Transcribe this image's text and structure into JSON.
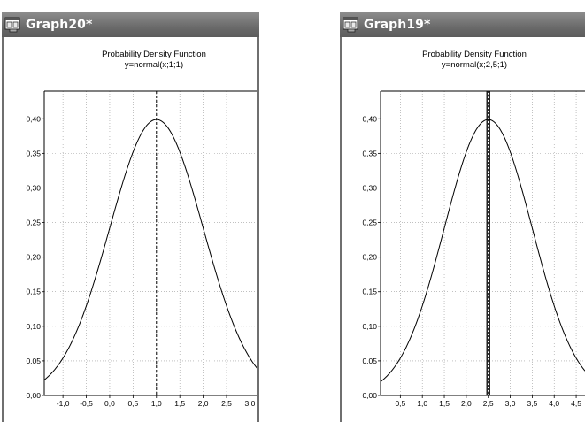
{
  "windows": [
    {
      "title": "Graph20*",
      "icon": "graph-window-icon",
      "chart_data": {
        "type": "line",
        "title": "Probability Density Function",
        "subtitle": "y=normal(x;1;1)",
        "function": "normal",
        "mean": 1,
        "sd": 1,
        "xlim": [
          -1.4,
          3.2
        ],
        "ylim": [
          0,
          0.44
        ],
        "x_ticks": [
          -1.0,
          -0.5,
          0.0,
          0.5,
          1.0,
          1.5,
          2.0,
          2.5,
          3.0
        ],
        "x_tick_labels": [
          "-1,0",
          "-0,5",
          "0,0",
          "0,5",
          "1,0",
          "1,5",
          "2,0",
          "2,5",
          "3,0"
        ],
        "y_ticks": [
          0.0,
          0.05,
          0.1,
          0.15,
          0.2,
          0.25,
          0.3,
          0.35,
          0.4
        ],
        "y_tick_labels": [
          "0,00",
          "0,05",
          "0,10",
          "0,15",
          "0,20",
          "0,25",
          "0,30",
          "0,35",
          "0,40"
        ],
        "marker_x": 1.0,
        "marker_style": "dashed",
        "grid": true,
        "line_color": "#000000",
        "grid_color": "#9a9a9a"
      }
    },
    {
      "title": "Graph19*",
      "icon": "graph-window-icon",
      "chart_data": {
        "type": "line",
        "title": "Probability Density Function",
        "subtitle": "y=normal(x;2,5;1)",
        "function": "normal",
        "mean": 2.5,
        "sd": 1,
        "xlim": [
          0.05,
          4.7
        ],
        "ylim": [
          0,
          0.44
        ],
        "x_ticks": [
          0.5,
          1.0,
          1.5,
          2.0,
          2.5,
          3.0,
          3.5,
          4.0,
          4.5
        ],
        "x_tick_labels": [
          "0,5",
          "1,0",
          "1,5",
          "2,0",
          "2,5",
          "3,0",
          "3,5",
          "4,0",
          "4,5"
        ],
        "y_ticks": [
          0.0,
          0.05,
          0.1,
          0.15,
          0.2,
          0.25,
          0.3,
          0.35,
          0.4
        ],
        "y_tick_labels": [
          "0,00",
          "0,05",
          "0,10",
          "0,15",
          "0,20",
          "0,25",
          "0,30",
          "0,35",
          "0,40"
        ],
        "marker_x": 2.5,
        "marker_style": "selected",
        "grid": true,
        "line_color": "#000000",
        "grid_color": "#9a9a9a"
      }
    }
  ]
}
